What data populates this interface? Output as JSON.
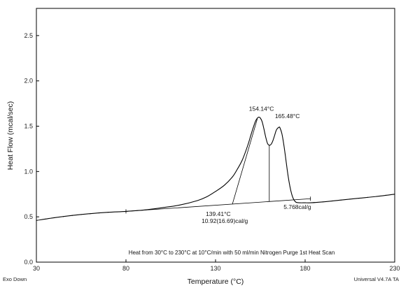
{
  "chart_data": {
    "type": "line",
    "xlabel": "Temperature (°C)",
    "ylabel": "Heat Flow (mcal/sec)",
    "xlim": [
      30,
      230
    ],
    "ylim": [
      0.0,
      2.8
    ],
    "xticks": [
      30,
      80,
      130,
      180,
      230
    ],
    "xtick_labels": [
      "30",
      "80",
      "130",
      "180",
      "230"
    ],
    "yticks": [
      0.0,
      0.5,
      1.0,
      1.5,
      2.0,
      2.5
    ],
    "ytick_labels": [
      "0.0",
      "0.5",
      "1.0",
      "1.5",
      "2.0",
      "2.5"
    ],
    "grid": false,
    "series": [
      {
        "name": "",
        "x": [
          30,
          40,
          50,
          60,
          70,
          80,
          90,
          100,
          110,
          120,
          125,
          130,
          135,
          139.4,
          142,
          145,
          148,
          150,
          152,
          153,
          154.14,
          155,
          156,
          157,
          158,
          159,
          160,
          161,
          162,
          163,
          164,
          165.48,
          166,
          167,
          168,
          169,
          170,
          171,
          172,
          173,
          174,
          175,
          177,
          180,
          183,
          190,
          200,
          210,
          220,
          230
        ],
        "y": [
          0.46,
          0.49,
          0.515,
          0.535,
          0.55,
          0.56,
          0.575,
          0.6,
          0.63,
          0.68,
          0.72,
          0.78,
          0.85,
          0.94,
          1.02,
          1.13,
          1.29,
          1.42,
          1.54,
          1.58,
          1.6,
          1.59,
          1.55,
          1.47,
          1.38,
          1.31,
          1.29,
          1.3,
          1.34,
          1.4,
          1.46,
          1.49,
          1.48,
          1.42,
          1.31,
          1.17,
          1.02,
          0.89,
          0.79,
          0.72,
          0.68,
          0.66,
          0.655,
          0.655,
          0.655,
          0.665,
          0.685,
          0.705,
          0.725,
          0.75
        ]
      }
    ],
    "baseline": {
      "x": [
        80,
        183
      ],
      "y": [
        0.56,
        0.7
      ]
    },
    "annotations": {
      "peak1_label": "154.14°C",
      "peak2_label": "165.48°C",
      "onset_label": "139.41°C",
      "enthalpy1_label": "10.92(16.69)cal/g",
      "enthalpy2_label": "5.768cal/g",
      "run_note": "Heat from 30°C to 230°C at 10°C/min with 50 ml/min Nitrogen Purge 1st Heat Scan",
      "bottom_left": "Exo Down",
      "bottom_right": "Universal V4.7A TA"
    }
  }
}
